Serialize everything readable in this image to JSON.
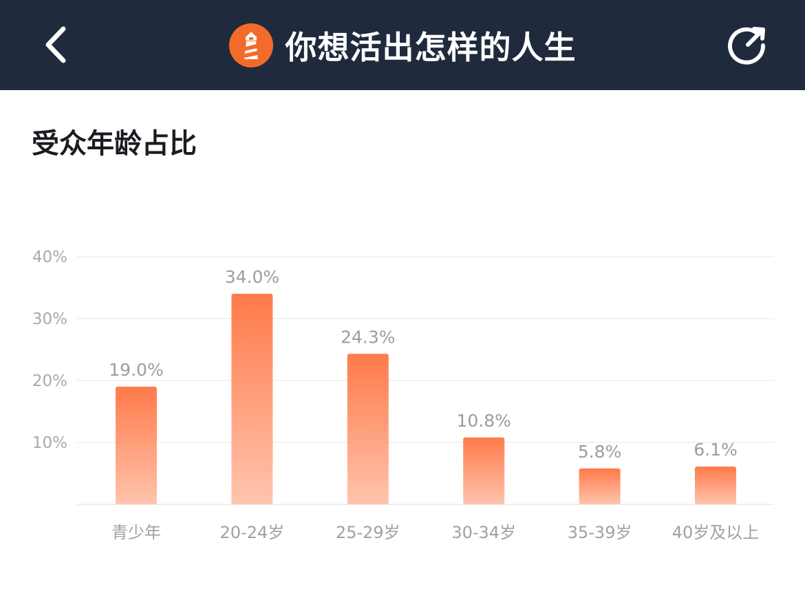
{
  "header": {
    "title": "你想活出怎样的人生",
    "back_icon": "chevron-left-icon",
    "logo_icon": "lighthouse-logo-icon",
    "refresh_icon": "share-refresh-icon",
    "bg_color": "#1f2b3c",
    "logo_color": "#f36b2a"
  },
  "section": {
    "title": "受众年龄占比"
  },
  "chart_data": {
    "type": "bar",
    "categories": [
      "青少年",
      "20-24岁",
      "25-29岁",
      "30-34岁",
      "35-39岁",
      "40岁及以上"
    ],
    "values": [
      19.0,
      34.0,
      24.3,
      10.8,
      5.8,
      6.1
    ],
    "value_labels": [
      "19.0%",
      "34.0%",
      "24.3%",
      "10.8%",
      "5.8%",
      "6.1%"
    ],
    "ylim": [
      0,
      40
    ],
    "yticks": [
      10,
      20,
      30,
      40
    ],
    "ytick_labels": [
      "10%",
      "20%",
      "30%",
      "40%"
    ],
    "grid": true,
    "bar_color_top": "#ff7a4a",
    "bar_color_bottom": "#ffc4ad"
  }
}
